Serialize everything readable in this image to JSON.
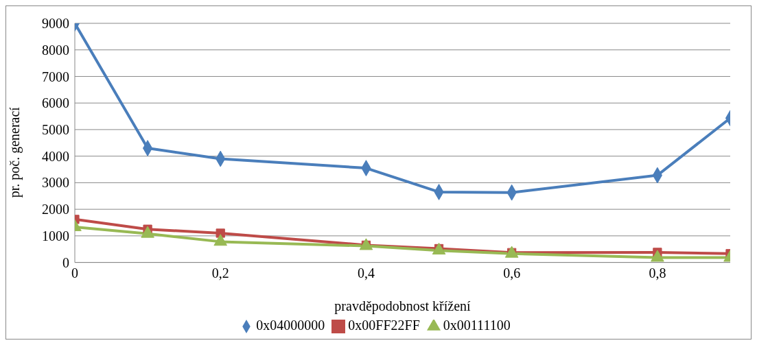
{
  "chart_data": {
    "type": "line",
    "xlabel": "pravděpodobnost křížení",
    "ylabel": "pr. poč. generací",
    "x": [
      0,
      0.1,
      0.2,
      0.4,
      0.5,
      0.6,
      0.8,
      0.9
    ],
    "series": [
      {
        "name": "0x04000000",
        "color": "#4a7ebb",
        "marker": "diamond",
        "values": [
          9000,
          4300,
          3900,
          3550,
          2650,
          2630,
          3280,
          5430
        ]
      },
      {
        "name": "0x00FF22FF",
        "color": "#be4b48",
        "marker": "square",
        "values": [
          1620,
          1250,
          1100,
          650,
          520,
          370,
          380,
          330
        ]
      },
      {
        "name": "0x00111100",
        "color": "#98b954",
        "marker": "triangle",
        "values": [
          1330,
          1080,
          780,
          620,
          450,
          330,
          180,
          180
        ]
      }
    ],
    "xlim": [
      0,
      0.9
    ],
    "xticks": [
      0,
      {
        "value": 0.2,
        "label": "0,2"
      },
      {
        "value": 0.4,
        "label": "0,4"
      },
      {
        "value": 0.6,
        "label": "0,6"
      },
      {
        "value": 0.8,
        "label": "0,8"
      }
    ],
    "ylim": [
      0,
      9000
    ],
    "yticks": [
      0,
      1000,
      2000,
      3000,
      4000,
      5000,
      6000,
      7000,
      8000,
      9000
    ],
    "grid": "y",
    "legend": "bottom",
    "line_style": "solid"
  }
}
